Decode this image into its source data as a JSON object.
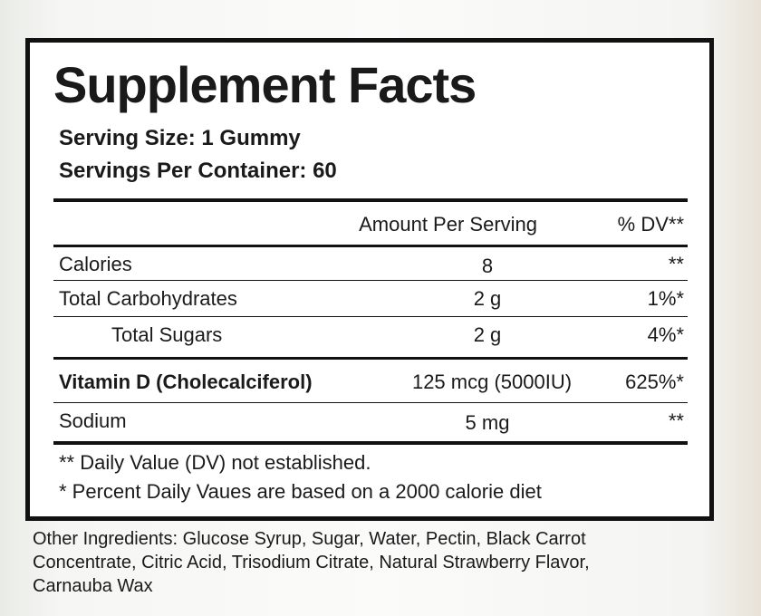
{
  "label": {
    "title": "Supplement Facts",
    "serving_size": "Serving Size: 1 Gummy",
    "servings_per_container": "Servings Per Container: 60",
    "header": {
      "amount": "Amount Per Serving",
      "dv": "% DV**"
    },
    "rows": [
      {
        "name": "Calories",
        "amount": "8",
        "dv": "**"
      },
      {
        "name": "Total Carbohydrates",
        "amount": "2 g",
        "dv": "1%*"
      },
      {
        "name": "Total Sugars",
        "amount": "2 g",
        "dv": "4%*"
      },
      {
        "name": "Vitamin D (Cholecalciferol)",
        "amount": "125 mcg (5000IU)",
        "dv": "625%*"
      },
      {
        "name": "Sodium",
        "amount": "5 mg",
        "dv": "**"
      }
    ],
    "footnotes": [
      "** Daily Value (DV) not established.",
      "* Percent Daily Vaues are based on a 2000 calorie diet"
    ],
    "other_ingredients": [
      "Other Ingredients: Glucose Syrup, Sugar, Water, Pectin, Black Carrot",
      "Concentrate, Citric Acid, Trisodium Citrate, Natural Strawberry Flavor,",
      "Carnauba Wax"
    ]
  }
}
